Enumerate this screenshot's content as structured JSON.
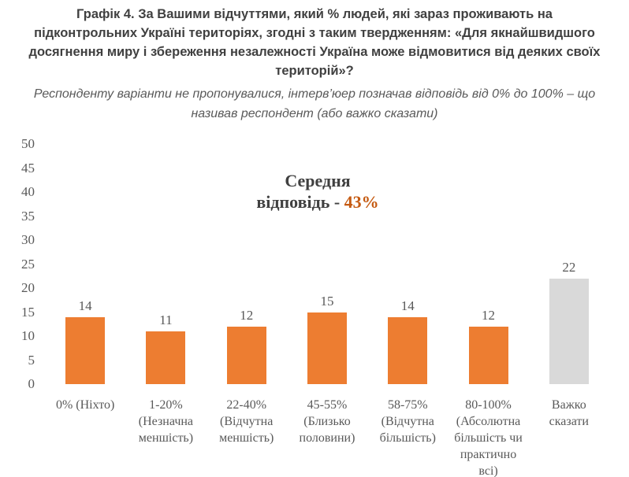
{
  "header": {
    "title": "Графік 4. За Вашими відчуттями, який % людей, які зараз проживають на\nпідконтрольних Україні територіях, згодні з таким твердженням: «Для якнайшвидшого\nдосягнення миру і збереження незалежності Україна може відмовитися від деяких своїх\nтериторій»?",
    "subtitle": "Респонденту варіанти не пропонувалися, інтерв’юер позначав відповідь від 0% до 100% – що\nназивав респондент (або важко сказати)"
  },
  "chart_data": {
    "type": "bar",
    "title": "Графік 4. За Вашими відчуттями, який % людей, які зараз проживають на підконтрольних Україні територіях, згодні з таким твердженням: «Для якнайшвидшого досягнення миру і збереження незалежності Україна може відмовитися від деяких своїх територій»?",
    "subtitle": "Респонденту варіанти не пропонувалися, інтерв’юер позначав відповідь від 0% до 100% – що називав респондент (або важко сказати)",
    "categories": [
      "0% (Ніхто)",
      "1-20% (Незначна меншість)",
      "22-40% (Відчутна меншість)",
      "45-55% (Близько половини)",
      "58-75% (Відчутна більшість)",
      "80-100% (Абсолютна більшість чи практично всі)",
      "Важко сказати"
    ],
    "tick_label_lines": [
      [
        "0% (Ніхто)"
      ],
      [
        "1-20%",
        "(Незначна",
        "меншість)"
      ],
      [
        "22-40%",
        "(Відчутна",
        "меншість)"
      ],
      [
        "45-55%",
        "(Близько",
        "половини)"
      ],
      [
        "58-75%",
        "(Відчутна",
        "більшість)"
      ],
      [
        "80-100%",
        "(Абсолютна",
        "більшість чи",
        "практично",
        "всі)"
      ],
      [
        "Важко",
        "сказати"
      ]
    ],
    "values": [
      14,
      11,
      12,
      15,
      14,
      12,
      22
    ],
    "bar_colors": [
      "#ED7D31",
      "#ED7D31",
      "#ED7D31",
      "#ED7D31",
      "#ED7D31",
      "#ED7D31",
      "#D9D9D9"
    ],
    "xlabel": "",
    "ylabel": "",
    "ylim": [
      0,
      50
    ],
    "y_ticks": [
      0,
      5,
      10,
      15,
      20,
      25,
      30,
      35,
      40,
      45,
      50
    ],
    "grid": false,
    "legend": false,
    "annotation": {
      "line1": "Середня",
      "line2_prefix": "відповідь - ",
      "value": "43%"
    }
  },
  "colors": {
    "bar_orange": "#ED7D31",
    "bar_gray": "#D9D9D9",
    "title_text": "#404040",
    "muted_text": "#595959",
    "annotation_value": "#C55A11"
  }
}
